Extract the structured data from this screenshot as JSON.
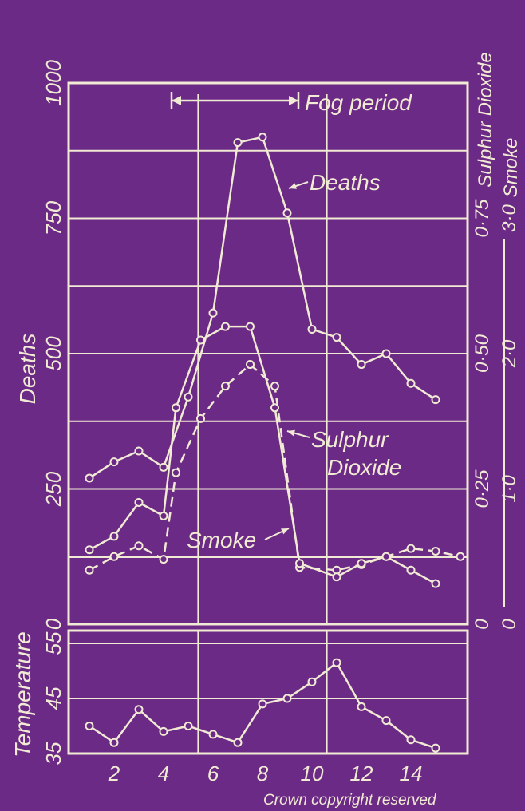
{
  "colors": {
    "background": "#6b2a86",
    "ink": "#f1ead4"
  },
  "chart_data": [
    {
      "type": "line",
      "x": [
        1,
        2,
        3,
        4,
        4.5,
        5,
        5.5,
        6,
        6.5,
        7,
        7.5,
        8,
        8.5,
        9,
        9.5,
        10,
        11,
        12,
        13,
        14,
        15,
        16
      ],
      "series": [
        {
          "name": "Deaths",
          "axis": "left",
          "dash": false,
          "values": [
            270,
            300,
            320,
            290,
            null,
            420,
            null,
            575,
            null,
            890,
            null,
            900,
            null,
            760,
            null,
            545,
            530,
            480,
            500,
            445,
            415,
            null
          ]
        },
        {
          "name": "Sulphur Dioxide",
          "axis": "right_sulphur",
          "dash": true,
          "values": [
            0.1,
            0.125,
            0.145,
            0.12,
            0.28,
            null,
            0.38,
            null,
            0.44,
            null,
            0.48,
            null,
            0.44,
            null,
            0.105,
            null,
            0.1,
            0.11,
            0.125,
            0.14,
            0.135,
            0.125
          ]
        },
        {
          "name": "Smoke",
          "axis": "right_smoke",
          "dash": false,
          "values": [
            0.55,
            0.65,
            0.9,
            0.8,
            1.6,
            null,
            2.1,
            null,
            2.2,
            null,
            2.2,
            null,
            1.6,
            null,
            0.45,
            null,
            0.35,
            0.45,
            0.5,
            0.4,
            0.3,
            null
          ]
        }
      ],
      "left_axis": {
        "label": "Deaths",
        "ticks": [
          "0",
          "250",
          "500",
          "750",
          "1000"
        ],
        "ylim": [
          0,
          1000
        ]
      },
      "right_axis_sulphur": {
        "label": "Sulphur Dioxide",
        "ticks": [
          "0",
          "0·25",
          "0·50",
          "0·75"
        ],
        "ylim": [
          0,
          1.0
        ]
      },
      "right_axis_smoke": {
        "label": "Smoke",
        "ticks": [
          "0",
          "1·0",
          "2·0",
          "3·0"
        ],
        "ylim": [
          0,
          4.0
        ]
      },
      "x_ticks": [
        "2",
        "4",
        "6",
        "8",
        "10",
        "12",
        "14"
      ],
      "fog_period_label": "Fog period",
      "fog_period_range": [
        4,
        9.5
      ],
      "annotations": {
        "deaths": "Deaths",
        "sulphur": "Sulphur",
        "dioxide": "Dioxide",
        "smoke": "Smoke"
      },
      "grid": true
    },
    {
      "type": "line",
      "series": [
        {
          "name": "Temperature",
          "x": [
            1,
            2,
            3,
            4,
            5,
            6,
            7,
            8,
            9,
            10,
            11,
            12,
            13,
            14,
            15
          ],
          "values": [
            40,
            37,
            43,
            39,
            40,
            38.5,
            37,
            44,
            45,
            48,
            51.5,
            43.5,
            41,
            37.5,
            36
          ]
        }
      ],
      "ylabel": "Temperature",
      "ticks": [
        "35",
        "45",
        "55"
      ],
      "ylim": [
        35,
        55
      ],
      "x_ticks": [
        "2",
        "4",
        "6",
        "8",
        "10",
        "12",
        "14"
      ]
    }
  ],
  "footer": {
    "copyright": "Crown  copyright reserved"
  }
}
